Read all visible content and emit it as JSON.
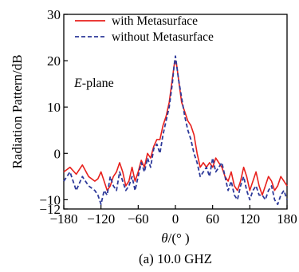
{
  "chart_data": {
    "type": "line",
    "caption": "(a) 10.0 GHZ",
    "xlabel_symbol": "θ",
    "xlabel_rest": "/(° )",
    "ylabel": "Radiation Pattern/dB",
    "annotation_italic": "E",
    "annotation_rest": "-plane",
    "xlim": [
      -180,
      180
    ],
    "ylim": [
      -12,
      30
    ],
    "xticks": [
      -180,
      -120,
      -60,
      0,
      60,
      120,
      180
    ],
    "yticks": [
      -12,
      -10,
      0,
      10,
      20,
      30
    ],
    "xtick_labels": [
      "−180",
      "−120",
      "−60",
      "0",
      "60",
      "120",
      "180"
    ],
    "ytick_labels": [
      "−12",
      "−10",
      "0",
      "10",
      "20",
      "30"
    ],
    "legend_position": "top-center",
    "grid": false,
    "series": [
      {
        "name": "with Metasurface",
        "color": "#e8201c",
        "dash": "solid",
        "x": [
          -180,
          -170,
          -160,
          -150,
          -140,
          -130,
          -125,
          -120,
          -115,
          -110,
          -105,
          -100,
          -95,
          -90,
          -85,
          -80,
          -75,
          -70,
          -65,
          -60,
          -55,
          -50,
          -45,
          -40,
          -35,
          -30,
          -25,
          -20,
          -15,
          -10,
          -5,
          -2,
          0,
          2,
          5,
          10,
          15,
          20,
          25,
          30,
          35,
          40,
          45,
          50,
          55,
          60,
          65,
          70,
          75,
          80,
          85,
          90,
          95,
          100,
          105,
          110,
          115,
          120,
          125,
          130,
          135,
          140,
          145,
          150,
          155,
          160,
          165,
          170,
          175,
          180
        ],
        "y": [
          -4,
          -3,
          -4.5,
          -2.5,
          -5,
          -6,
          -5.5,
          -4,
          -6,
          -8,
          -7,
          -5,
          -4,
          -2,
          -4,
          -7,
          -6,
          -3,
          -6,
          -4,
          -1.5,
          -3,
          0,
          -1,
          1.5,
          3,
          3,
          6,
          8,
          11,
          16,
          19,
          20,
          19,
          16,
          11,
          9,
          7,
          6,
          4,
          0,
          -3,
          -2,
          -3,
          -2,
          -3,
          -1,
          -2,
          -3,
          -5,
          -6,
          -4,
          -7,
          -8,
          -6,
          -3,
          -5,
          -8,
          -6,
          -4,
          -7,
          -9,
          -7,
          -5,
          -6,
          -8,
          -7,
          -5,
          -6,
          -7
        ]
      },
      {
        "name": "without Metasurface",
        "color": "#2e3a9a",
        "dash": "dashed",
        "x": [
          -180,
          -170,
          -160,
          -150,
          -140,
          -130,
          -125,
          -120,
          -115,
          -110,
          -105,
          -100,
          -95,
          -90,
          -85,
          -80,
          -75,
          -70,
          -65,
          -60,
          -55,
          -50,
          -45,
          -40,
          -35,
          -30,
          -25,
          -20,
          -15,
          -10,
          -5,
          -2,
          0,
          2,
          5,
          10,
          15,
          20,
          25,
          30,
          35,
          40,
          45,
          50,
          55,
          60,
          65,
          70,
          75,
          80,
          85,
          90,
          95,
          100,
          105,
          110,
          115,
          120,
          125,
          130,
          135,
          140,
          145,
          150,
          155,
          160,
          165,
          170,
          175,
          180
        ],
        "y": [
          -6,
          -4,
          -8,
          -5,
          -7,
          -8,
          -9,
          -11,
          -8,
          -9,
          -5,
          -7,
          -8,
          -4,
          -6,
          -8,
          -7,
          -5,
          -8,
          -5,
          -2,
          -4,
          -1,
          -3,
          1,
          2,
          0,
          4,
          7,
          10,
          15,
          19,
          21,
          19,
          16,
          12,
          8,
          5,
          3,
          0,
          -2,
          -5,
          -4,
          -3,
          -5,
          -1,
          -4,
          -3,
          -2,
          -5,
          -8,
          -6,
          -9,
          -10,
          -7,
          -5,
          -8,
          -10,
          -8,
          -7,
          -9,
          -9,
          -10,
          -8,
          -7,
          -10,
          -11,
          -9,
          -8,
          -10
        ]
      }
    ]
  }
}
